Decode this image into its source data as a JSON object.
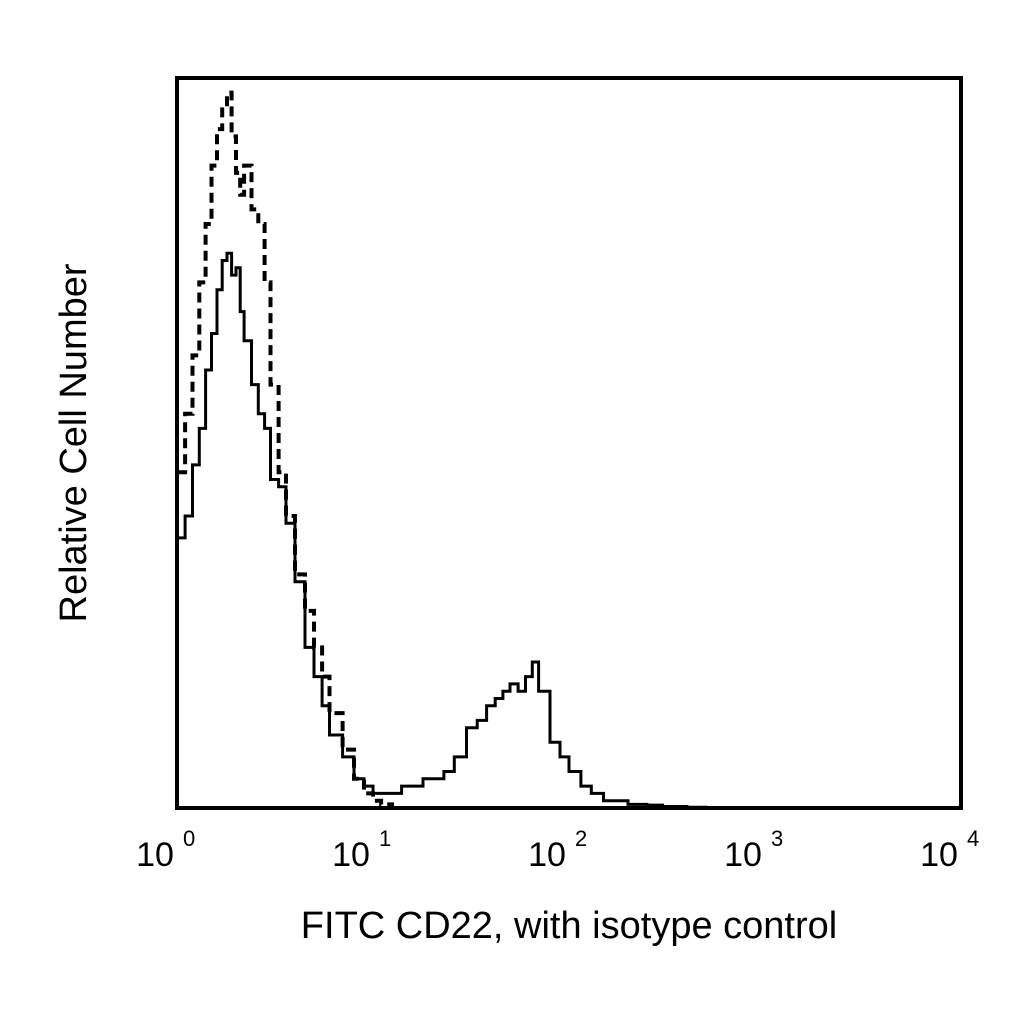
{
  "chart_data": {
    "type": "line",
    "title": "",
    "xlabel": "FITC CD22, with isotype control",
    "ylabel": "Relative Cell Number",
    "x_scale": "log",
    "xlim": [
      1,
      10000
    ],
    "ylim": [
      0,
      100
    ],
    "grid": false,
    "legend": "none",
    "x_ticks": [
      {
        "value": 1,
        "base": "10",
        "exp": "0"
      },
      {
        "value": 10,
        "base": "10",
        "exp": "1"
      },
      {
        "value": 100,
        "base": "10",
        "exp": "2"
      },
      {
        "value": 1000,
        "base": "10",
        "exp": "3"
      },
      {
        "value": 10000,
        "base": "10",
        "exp": "4"
      }
    ],
    "series": [
      {
        "style": "solid",
        "color": "#000000",
        "x": [
          1.0,
          1.1,
          1.2,
          1.3,
          1.4,
          1.5,
          1.6,
          1.7,
          1.8,
          1.9,
          2.0,
          2.1,
          2.2,
          2.4,
          2.6,
          2.8,
          3.0,
          3.3,
          3.6,
          4.0,
          4.5,
          5.0,
          5.5,
          6.0,
          7.0,
          8.0,
          9.0,
          10.0,
          11.0,
          12.5,
          14.0,
          16.0,
          18.0,
          20.0,
          23.0,
          26.0,
          30.0,
          34.0,
          38.0,
          42.0,
          46.0,
          50.0,
          55.0,
          60.0,
          65.0,
          70.0,
          80.0,
          90.0,
          100.0,
          115.0,
          130.0,
          150.0,
          175.0,
          200.0,
          250.0,
          300.0,
          400.0,
          500.0,
          700.0,
          1000.0
        ],
        "y": [
          37,
          40,
          47,
          52,
          60,
          65,
          71,
          75,
          76,
          73,
          74,
          68,
          64,
          58,
          54,
          52,
          45,
          44,
          39,
          31,
          22,
          18,
          14,
          10,
          7,
          4,
          3,
          2,
          2,
          2,
          3,
          3,
          4,
          4,
          5,
          7,
          11,
          12,
          14,
          15,
          16,
          17,
          16,
          18,
          20,
          16,
          9,
          7,
          5,
          3,
          2,
          1,
          1,
          0.5,
          0.4,
          0.2,
          0.1,
          0,
          0,
          0
        ]
      },
      {
        "style": "dashed",
        "color": "#000000",
        "x": [
          1.0,
          1.1,
          1.2,
          1.3,
          1.4,
          1.5,
          1.6,
          1.7,
          1.8,
          1.9,
          2.0,
          2.1,
          2.2,
          2.4,
          2.6,
          2.8,
          3.0,
          3.3,
          3.6,
          4.0,
          4.5,
          5.0,
          5.5,
          6.0,
          7.0,
          8.0,
          9.0,
          10.0,
          11.0,
          12.5,
          14.0,
          16.0
        ],
        "y": [
          46,
          54,
          62,
          72,
          80,
          88,
          93,
          96,
          98,
          92,
          87,
          84,
          88,
          82,
          80,
          72,
          58,
          46,
          40,
          32,
          27,
          22,
          18,
          13,
          8,
          4,
          2,
          1,
          0.5,
          0,
          0,
          0
        ]
      }
    ]
  }
}
